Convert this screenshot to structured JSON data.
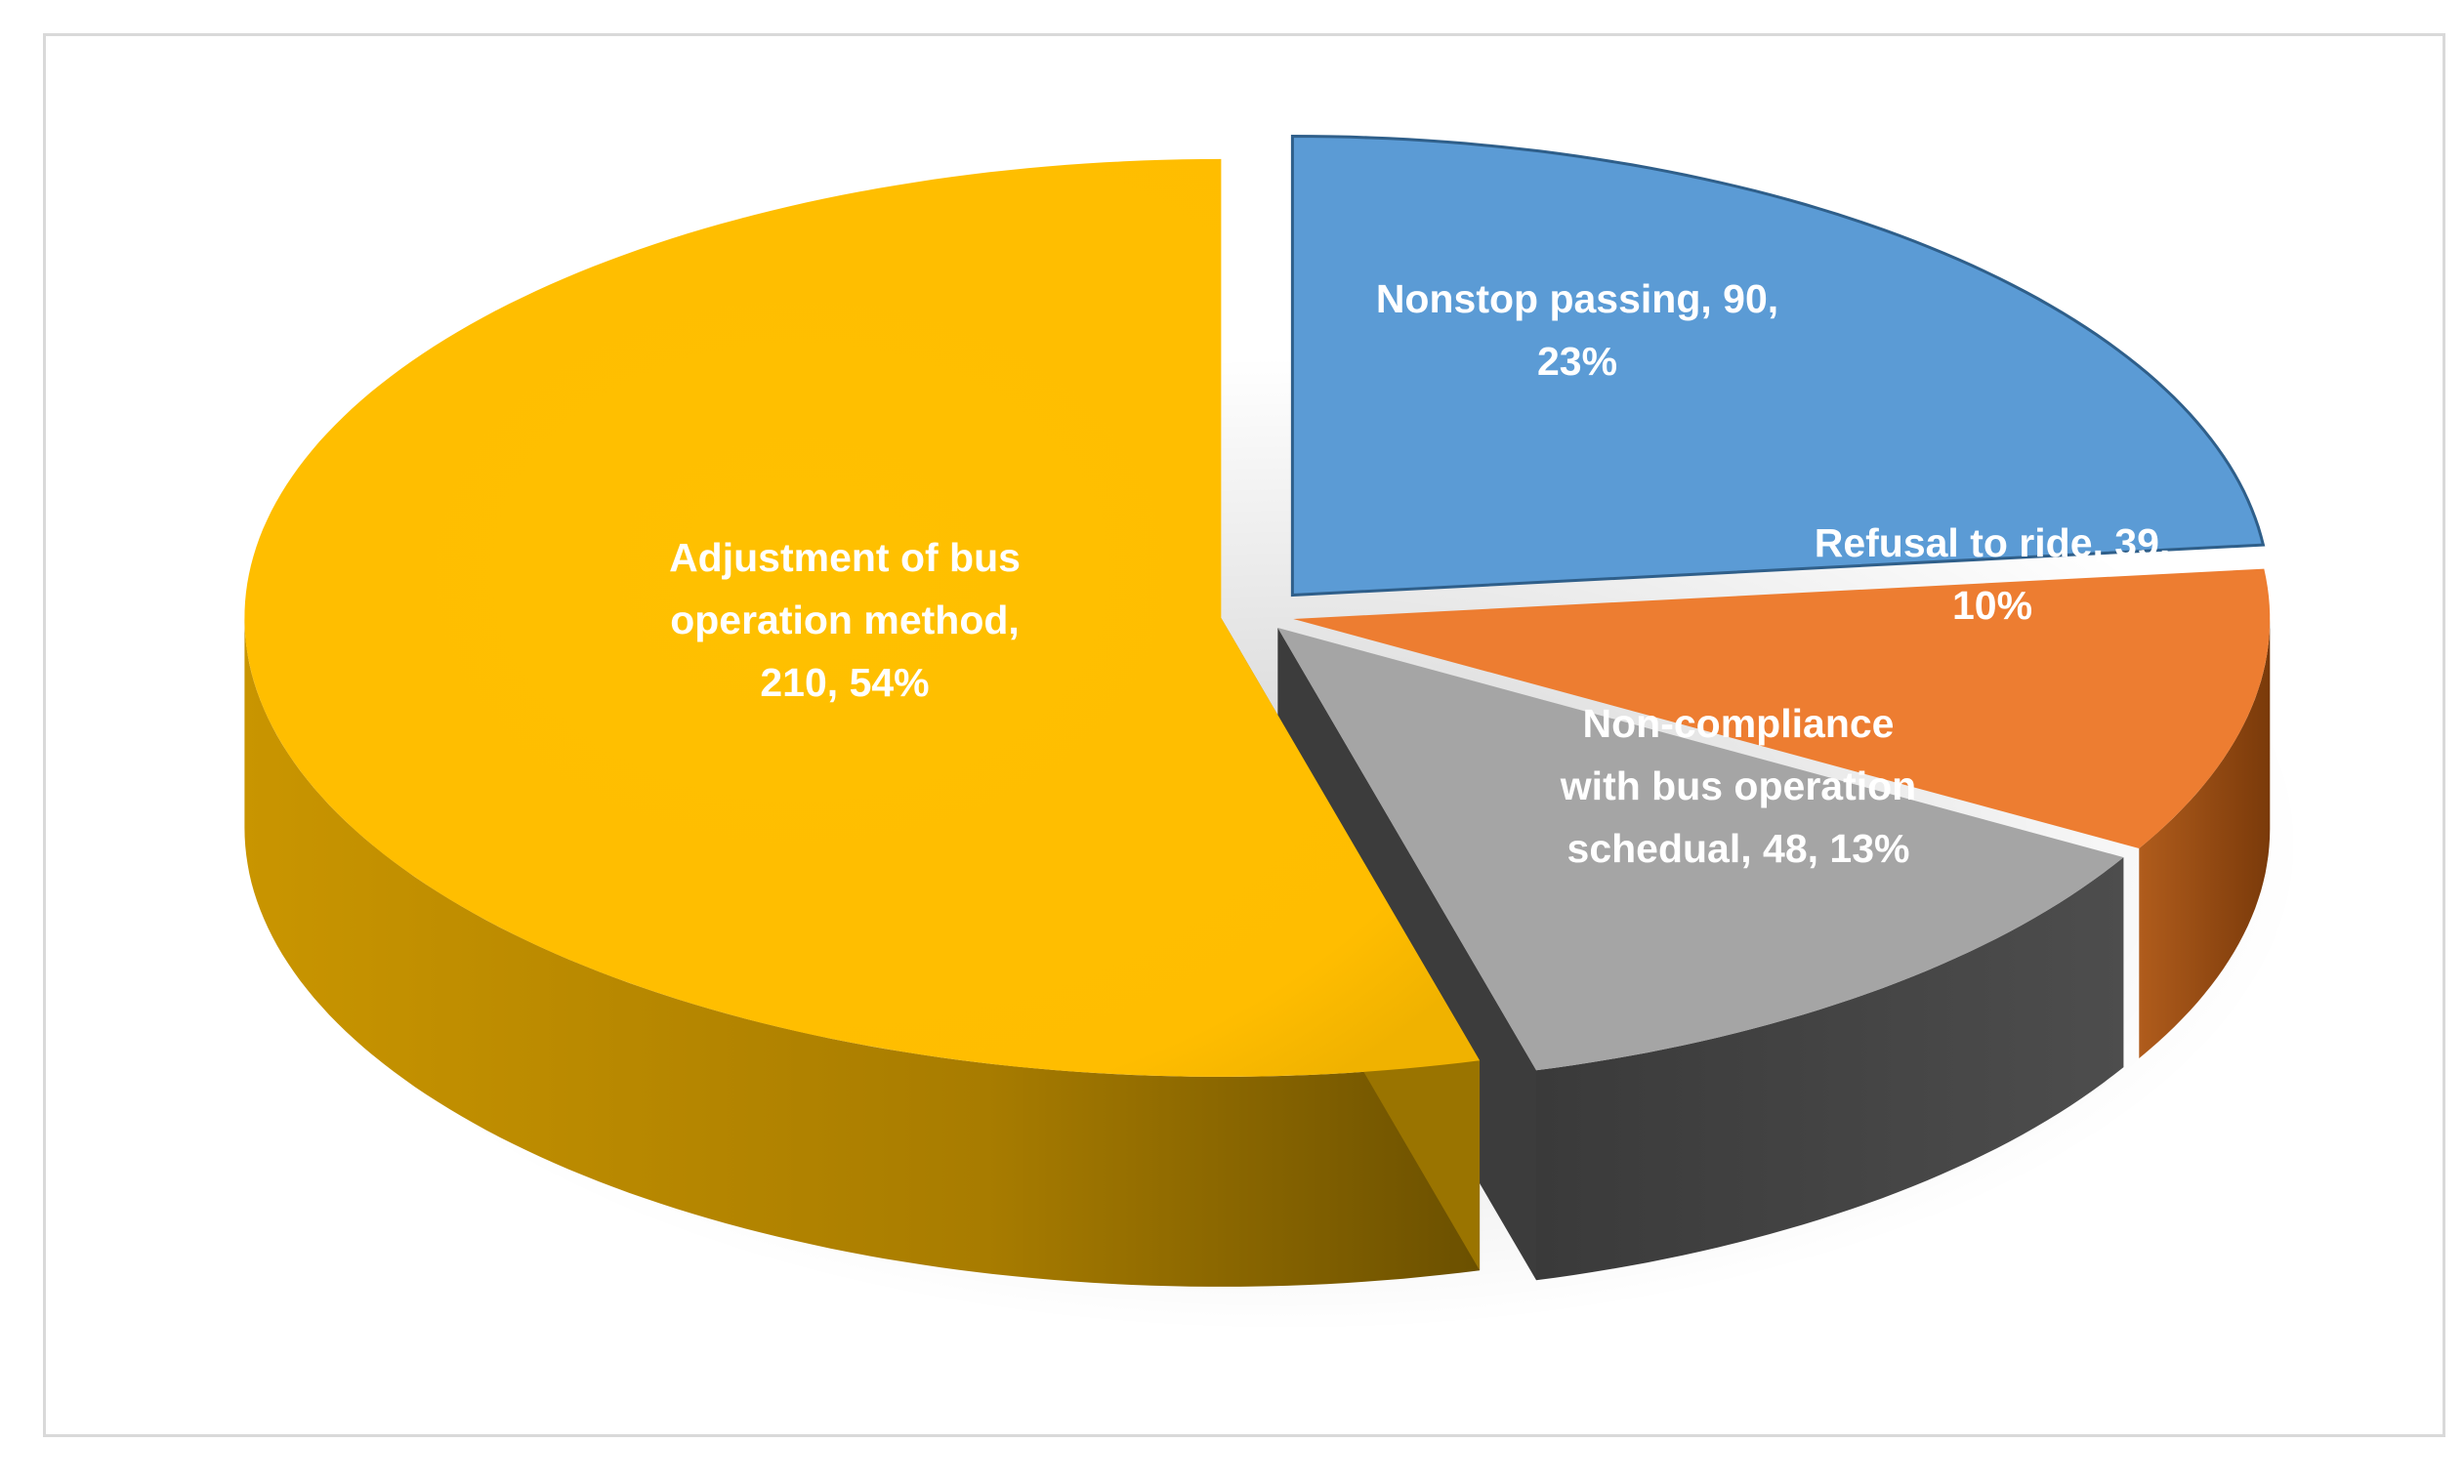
{
  "chart_data": {
    "type": "pie",
    "title": "",
    "categories": [
      "Nonstop passing",
      "Refusal to ride",
      "Non-compliance with bus operation schedual",
      "Adjustment of bus operation method"
    ],
    "values": [
      90,
      39,
      48,
      210
    ],
    "percent": [
      "23%",
      "10%",
      "13%",
      "54%"
    ],
    "labels": [
      [
        "Nonstop passing, 90,",
        "23%"
      ],
      [
        "Refusal to ride, 39,",
        "10%"
      ],
      [
        "Non-compliance",
        "with bus operation",
        "schedual, 48, 13%"
      ],
      [
        "Adjustment of bus",
        "operation method,",
        "210, 54%"
      ]
    ],
    "colors": [
      "#5b9bd5",
      "#ed7d31",
      "#a5a5a5",
      "#ffc000"
    ],
    "side_colors": [
      "#3a6e9f",
      "#a55418",
      "#404040",
      "#b88700"
    ],
    "style": "3D exploded pie",
    "legend": "none"
  }
}
